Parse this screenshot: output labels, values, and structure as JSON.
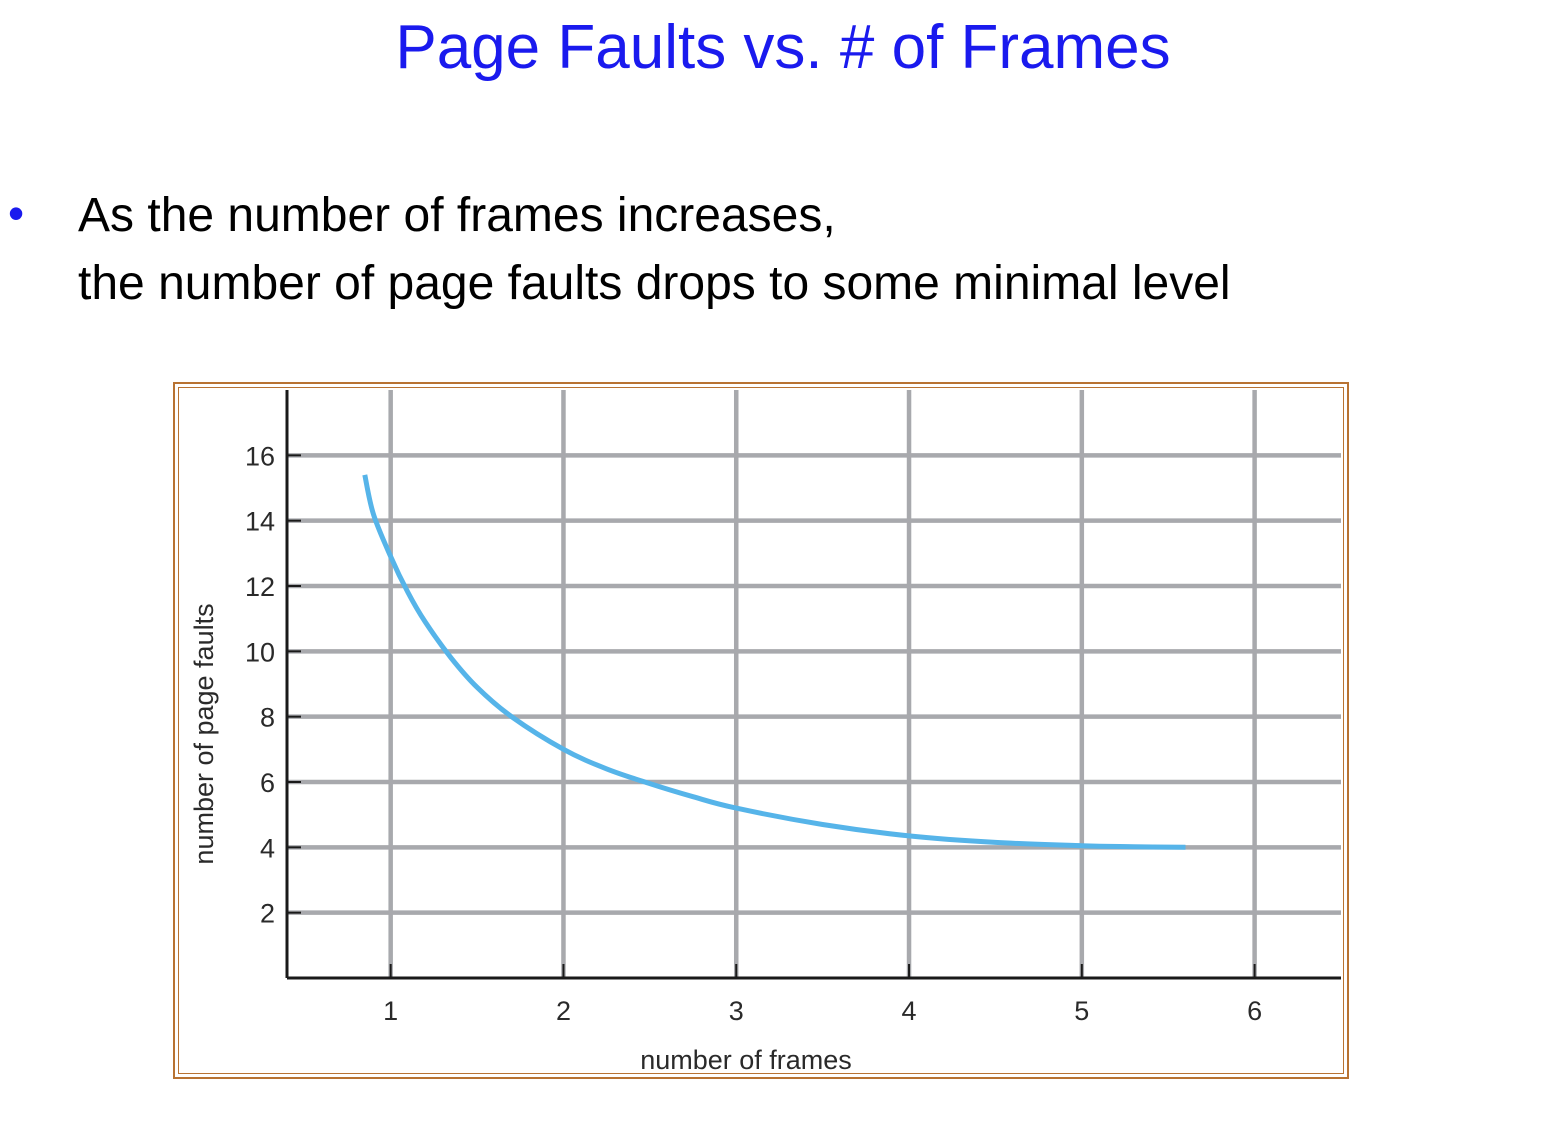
{
  "slide": {
    "title": "Page Faults vs. # of Frames",
    "bullet_symbol": "•",
    "bullet_lines": [
      "As the number of frames increases,",
      "the number of page faults drops to some minimal level"
    ]
  },
  "colors": {
    "title": "#1a1aee",
    "bullet": "#1a1aee",
    "text": "#000000",
    "frame_border": "#b87333",
    "grid": "#a8a9ad",
    "axis": "#1a1a1a",
    "curve": "#56b4e9"
  },
  "chart_data": {
    "type": "line",
    "title": "",
    "xlabel": "number of frames",
    "ylabel": "number of page faults",
    "xlim": [
      0.4,
      6.5
    ],
    "ylim": [
      0,
      18
    ],
    "xticks": [
      1,
      2,
      3,
      4,
      5,
      6
    ],
    "yticks": [
      2,
      4,
      6,
      8,
      10,
      12,
      14,
      16
    ],
    "grid": true,
    "legend": "none",
    "series": [
      {
        "x": [
          0.85,
          0.9,
          1.0,
          1.1,
          1.2,
          1.35,
          1.5,
          1.7,
          2.0,
          2.25,
          2.5,
          2.75,
          3.0,
          3.5,
          4.0,
          4.5,
          5.0,
          5.3,
          5.6
        ],
        "y": [
          15.4,
          14.2,
          12.9,
          11.8,
          10.9,
          9.8,
          8.9,
          8.0,
          7.0,
          6.4,
          5.95,
          5.55,
          5.2,
          4.7,
          4.35,
          4.15,
          4.05,
          4.02,
          4.0
        ]
      }
    ]
  }
}
